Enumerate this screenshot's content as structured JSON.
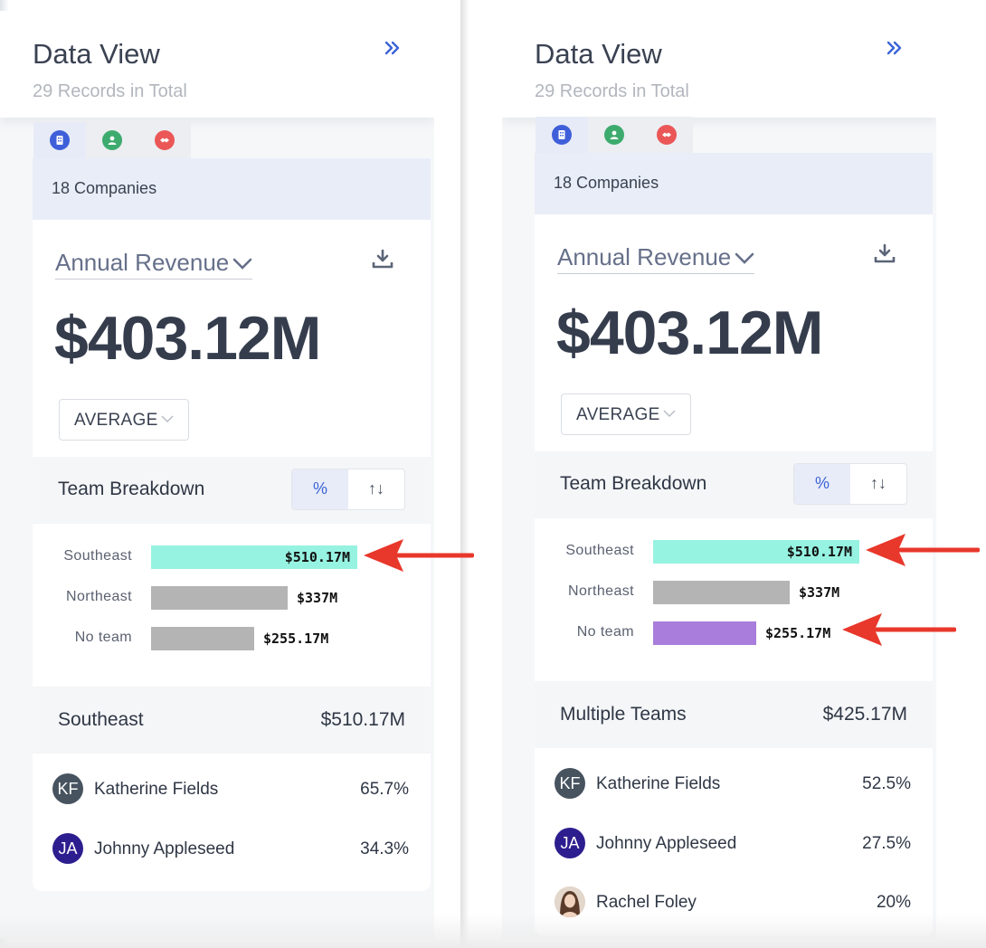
{
  "colors": {
    "accent": "#3c64d6",
    "tab_company": "#3f5fd9",
    "tab_person": "#3eab6e",
    "tab_deal": "#eb5757",
    "bar_highlight": "#96f3e1",
    "bar_muted": "#b4b4b4",
    "bar_no_team_selected": "#a97ddb",
    "arrow": "#e8372b",
    "avatar_kf": "#47535f",
    "avatar_ja": "#2d1e8f"
  },
  "panels": [
    {
      "title": "Data View",
      "subtitle": "29 Records in Total",
      "collapse_icon": "double-chevron-right-icon",
      "tabs": [
        {
          "icon": "building-icon",
          "active": true
        },
        {
          "icon": "person-icon",
          "active": false
        },
        {
          "icon": "handshake-icon",
          "active": false
        }
      ],
      "count_label": "18 Companies",
      "metric_label": "Annual Revenue",
      "metric_value": "$403.12M",
      "aggregation": "AVERAGE",
      "breakdown_title": "Team Breakdown",
      "toggle": {
        "percent_symbol": "%",
        "sort_symbol": "↑↓",
        "active": "percent"
      },
      "bars": [
        {
          "label": "Southeast",
          "value_label": "$510.17M",
          "value": 510.17,
          "color_key": "bar_highlight",
          "arrow": true
        },
        {
          "label": "Northeast",
          "value_label": "$337M",
          "value": 337,
          "color_key": "bar_muted",
          "arrow": false
        },
        {
          "label": "No team",
          "value_label": "$255.17M",
          "value": 255.17,
          "color_key": "bar_muted",
          "arrow": false
        }
      ],
      "selection": {
        "name": "Southeast",
        "value": "$510.17M"
      },
      "members": [
        {
          "initials": "KF",
          "name": "Katherine Fields",
          "pct": "65.7%",
          "color_key": "avatar_kf"
        },
        {
          "initials": "JA",
          "name": "Johnny Appleseed",
          "pct": "34.3%",
          "color_key": "avatar_ja"
        }
      ]
    },
    {
      "title": "Data View",
      "subtitle": "29 Records in Total",
      "collapse_icon": "double-chevron-right-icon",
      "tabs": [
        {
          "icon": "building-icon",
          "active": true
        },
        {
          "icon": "person-icon",
          "active": false
        },
        {
          "icon": "handshake-icon",
          "active": false
        }
      ],
      "count_label": "18 Companies",
      "metric_label": "Annual Revenue",
      "metric_value": "$403.12M",
      "aggregation": "AVERAGE",
      "breakdown_title": "Team Breakdown",
      "toggle": {
        "percent_symbol": "%",
        "sort_symbol": "↑↓",
        "active": "percent"
      },
      "bars": [
        {
          "label": "Southeast",
          "value_label": "$510.17M",
          "value": 510.17,
          "color_key": "bar_highlight",
          "arrow": true
        },
        {
          "label": "Northeast",
          "value_label": "$337M",
          "value": 337,
          "color_key": "bar_muted",
          "arrow": false
        },
        {
          "label": "No team",
          "value_label": "$255.17M",
          "value": 255.17,
          "color_key": "bar_no_team_selected",
          "arrow": true
        }
      ],
      "selection": {
        "name": "Multiple Teams",
        "value": "$425.17M"
      },
      "members": [
        {
          "initials": "KF",
          "name": "Katherine Fields",
          "pct": "52.5%",
          "color_key": "avatar_kf"
        },
        {
          "initials": "JA",
          "name": "Johnny Appleseed",
          "pct": "27.5%",
          "color_key": "avatar_ja"
        },
        {
          "initials": "",
          "name": "Rachel Foley",
          "pct": "20%",
          "color_key": "photo"
        }
      ]
    }
  ]
}
